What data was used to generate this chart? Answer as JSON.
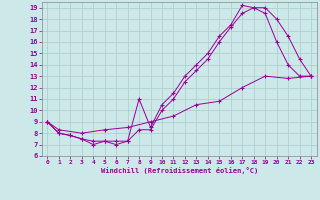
{
  "title": "",
  "xlabel": "Windchill (Refroidissement éolien,°C)",
  "background_color": "#cce8e8",
  "line_color": "#990099",
  "xlim": [
    -0.5,
    23.5
  ],
  "ylim": [
    6,
    19.5
  ],
  "xticks": [
    0,
    1,
    2,
    3,
    4,
    5,
    6,
    7,
    8,
    9,
    10,
    11,
    12,
    13,
    14,
    15,
    16,
    17,
    18,
    19,
    20,
    21,
    22,
    23
  ],
  "yticks": [
    6,
    7,
    8,
    9,
    10,
    11,
    12,
    13,
    14,
    15,
    16,
    17,
    18,
    19
  ],
  "grid_color": "#aacccc",
  "line1_x": [
    0,
    1,
    2,
    3,
    4,
    5,
    6,
    7,
    8,
    9,
    10,
    11,
    12,
    13,
    14,
    15,
    16,
    17,
    18,
    19,
    20,
    21,
    22,
    23
  ],
  "line1_y": [
    9.0,
    8.0,
    7.8,
    7.5,
    7.0,
    7.3,
    7.0,
    7.3,
    11.0,
    8.5,
    10.5,
    11.5,
    13.0,
    14.0,
    15.0,
    16.5,
    17.5,
    19.2,
    19.0,
    19.0,
    18.0,
    16.5,
    14.5,
    13.0
  ],
  "line2_x": [
    0,
    1,
    2,
    3,
    4,
    5,
    6,
    7,
    8,
    9,
    10,
    11,
    12,
    13,
    14,
    15,
    16,
    17,
    18,
    19,
    20,
    21,
    22,
    23
  ],
  "line2_y": [
    9.0,
    8.0,
    7.8,
    7.5,
    7.3,
    7.3,
    7.3,
    7.3,
    8.3,
    8.3,
    10.0,
    11.0,
    12.5,
    13.5,
    14.5,
    16.0,
    17.3,
    18.5,
    19.0,
    18.5,
    16.0,
    14.0,
    13.0,
    13.0
  ],
  "line3_x": [
    0,
    1,
    3,
    5,
    7,
    9,
    11,
    13,
    15,
    17,
    19,
    21,
    23
  ],
  "line3_y": [
    9.0,
    8.3,
    8.0,
    8.3,
    8.5,
    9.0,
    9.5,
    10.5,
    10.8,
    12.0,
    13.0,
    12.8,
    13.0
  ]
}
